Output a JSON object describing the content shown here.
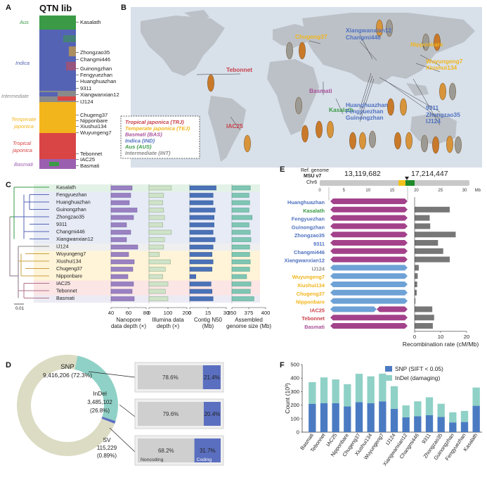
{
  "colors": {
    "aus": "#3a9a45",
    "indica": "#5563b5",
    "intermediate": "#8a8a8a",
    "temperate": "#f2b51c",
    "tropical": "#d94545",
    "basmati": "#9b5fb0",
    "trj": "#c8414b",
    "bas": "#a9519a",
    "ind": "#4f71c0",
    "teal": "#8fd1c6",
    "snp_blue": "#4a7bc2",
    "gray": "#777777",
    "ocean": "#d8e0ea",
    "land": "#bcc1c7"
  },
  "panelA": {
    "label": "A",
    "title": "QTN lib",
    "groups": [
      "Aus",
      "Indica",
      "Intermediate",
      "Temperate japonica",
      "Tropical japonica",
      "Basmati"
    ],
    "samples": [
      "Kasalath",
      "Zhongzao35",
      "Changmi446",
      "Guinongzhan",
      "Fengyuezhan",
      "Huanghuazhan",
      "9311",
      "Xiangwanxian12",
      "IJ124",
      "Chugeng37",
      "Nipponbare",
      "Xiushui134",
      "Wuyungeng7",
      "Tebonnet",
      "IAC25",
      "Basmati"
    ]
  },
  "panelB": {
    "label": "B",
    "map_labels": [
      {
        "text": "Tebonnet",
        "group": "trj"
      },
      {
        "text": "IAC25",
        "group": "trj"
      },
      {
        "text": "Basmati",
        "group": "bas"
      },
      {
        "text": "Kasalath",
        "group": "aus"
      },
      {
        "text": "Chugeng37",
        "group": "tej"
      },
      {
        "text": "Xiangwanxian12",
        "group": "ind"
      },
      {
        "text": "Changmi446",
        "group": "ind"
      },
      {
        "text": "Nipponbare",
        "group": "tej"
      },
      {
        "text": "Wuyungeng7",
        "group": "tej"
      },
      {
        "text": "Xiushui134",
        "group": "tej"
      },
      {
        "text": "Huanghuazhan",
        "group": "ind"
      },
      {
        "text": "Fengyuezhan",
        "group": "ind"
      },
      {
        "text": "Guinongzhan",
        "group": "ind"
      },
      {
        "text": "9311",
        "group": "ind"
      },
      {
        "text": "Zhongzao35",
        "group": "ind"
      },
      {
        "text": "IJ124",
        "group": "ind"
      }
    ],
    "legend": [
      {
        "text": "Tropical japonica (TRJ)",
        "group": "trj"
      },
      {
        "text": "Temperate japonica (TEJ)",
        "group": "tej"
      },
      {
        "text": "Basmati (BAS)",
        "group": "bas"
      },
      {
        "text": "Indica (IND)",
        "group": "ind"
      },
      {
        "text": "Aus (AUS)",
        "group": "aus"
      },
      {
        "text": "Intermediate (INT)",
        "group": "int"
      }
    ]
  },
  "panelC": {
    "label": "C",
    "samples": [
      "Kasalath",
      "Fengyuezhan",
      "Huanghuazhan",
      "Guinongzhan",
      "Zhongzao35",
      "9311",
      "Changmi446",
      "Xiangwanxian12",
      "IJ124",
      "Wuyungeng7",
      "Xiushui134",
      "Chugeng37",
      "Nipponbare",
      "IAC25",
      "Tebonnet",
      "Basmati"
    ],
    "nanopore": [
      70,
      68,
      66,
      77,
      72,
      62,
      68,
      62,
      78,
      65,
      73,
      71,
      64,
      72,
      70,
      73
    ],
    "illumina": [
      130,
      85,
      80,
      85,
      90,
      80,
      130,
      90,
      85,
      60,
      125,
      95,
      80,
      110,
      95,
      110
    ],
    "contig_n50": [
      26,
      23,
      23,
      25,
      24,
      24,
      23,
      25,
      23,
      22,
      23,
      22,
      6,
      21,
      22,
      23
    ],
    "genome_size": [
      380,
      378,
      379,
      378,
      383,
      378,
      380,
      381,
      379,
      379,
      380,
      379,
      374,
      381,
      380,
      386
    ],
    "axes": [
      {
        "ticks": [
          "40",
          "60",
          "80"
        ],
        "label1": "Nanopore",
        "label2": "data depth (×)"
      },
      {
        "ticks": [
          "0",
          "100",
          "200"
        ],
        "label1": "Illumina data",
        "label2": "depth (×)"
      },
      {
        "ticks": [
          "0",
          "15",
          "30"
        ],
        "label1": "Contig N50",
        "label2": "(Mb)"
      },
      {
        "ticks": [
          "350",
          "375",
          "400"
        ],
        "label1": "Assembled",
        "label2": "genome size (Mb)"
      }
    ],
    "scale": "0.01"
  },
  "panelD": {
    "label": "D",
    "snp_label": "SNP",
    "snp_value": "9,416,206 (72.3%)",
    "indel_label": "InDel",
    "indel_value": "3,485,102",
    "indel_pct": "(26.8%)",
    "sv_label": "SV",
    "sv_value": "115,229",
    "sv_pct": "(0.89%)",
    "fractions": {
      "snp": 72.3,
      "indel": 26.8,
      "sv": 0.89
    },
    "bars": [
      {
        "noncoding": "78.6%",
        "coding": "21.4%",
        "coding_frac": 21.4
      },
      {
        "noncoding": "79.6%",
        "coding": "20.4%",
        "coding_frac": 20.4
      },
      {
        "noncoding": "68.2%",
        "coding": "31.7%",
        "coding_frac": 31.7
      }
    ],
    "noncoding_label": "Noncoding",
    "coding_label": "Coding"
  },
  "panelE": {
    "label": "E",
    "ref_line1": "Ref. genome",
    "ref_line2": "MSU v7",
    "chr": "Chr6",
    "pos1": "13,119,682",
    "pos2": "17,214,447",
    "chr_ticks": [
      "0",
      "5",
      "10",
      "15",
      "20",
      "25",
      "30"
    ],
    "chr_unit": "Mb",
    "samples": [
      "Huanghuazhan",
      "Kasalath",
      "Fengyuezhan",
      "Guinongzhan",
      "Zhongzao35",
      "9311",
      "Changmi446",
      "Xiangwanxian12",
      "IJ124",
      "Wuyungeng7",
      "Xiushui134",
      "Chugeng37",
      "Nipponbare",
      "IAC25",
      "Tebonnet",
      "Basmati"
    ],
    "sample_groups": [
      "ind",
      "aus",
      "ind",
      "ind",
      "ind",
      "ind",
      "ind",
      "ind",
      "int",
      "tej",
      "tej",
      "tej",
      "tej",
      "trj",
      "trj",
      "bas"
    ],
    "haplotype": [
      "p",
      "p",
      "p",
      "p",
      "p",
      "p",
      "p",
      "p",
      "b",
      "b",
      "b",
      "b",
      "b",
      "mix",
      "p",
      "p"
    ],
    "rec_rate": [
      0,
      13.5,
      5.8,
      6.0,
      15.8,
      9.0,
      11.0,
      13.5,
      1.6,
      1.2,
      1.0,
      0.8,
      0.3,
      6.8,
      7.5,
      7.0
    ],
    "xticks": [
      "0",
      "10",
      "20"
    ],
    "xlabel": "Recombination rate (cM/Mb)",
    "xmax": 20
  },
  "panelF": {
    "label": "F",
    "chart_data": {
      "type": "bar",
      "stacked": true,
      "categories": [
        "Basmati",
        "Tebonnet",
        "IAC25",
        "Nipponbare",
        "Chugeng37",
        "Xiushui134",
        "Wuyungeng7",
        "IJ124",
        "Xiangwanxian12",
        "Changmi446",
        "9311",
        "Zhongzao35",
        "Guinongzhan",
        "Fengyuezhan",
        "Kasalath"
      ],
      "series": [
        {
          "name": "SNP (SIFT < 0.05)",
          "values": [
            210,
            215,
            215,
            190,
            222,
            215,
            228,
            172,
            110,
            118,
            125,
            112,
            72,
            75,
            195
          ]
        },
        {
          "name": "InDel (damaging)",
          "values": [
            160,
            190,
            175,
            165,
            210,
            198,
            205,
            168,
            88,
            110,
            133,
            98,
            75,
            82,
            135
          ]
        }
      ],
      "ylabel": "Count (10³)",
      "yticks": [
        "0",
        "100",
        "200",
        "300",
        "400",
        "500"
      ],
      "ylim": [
        0,
        500
      ]
    }
  }
}
